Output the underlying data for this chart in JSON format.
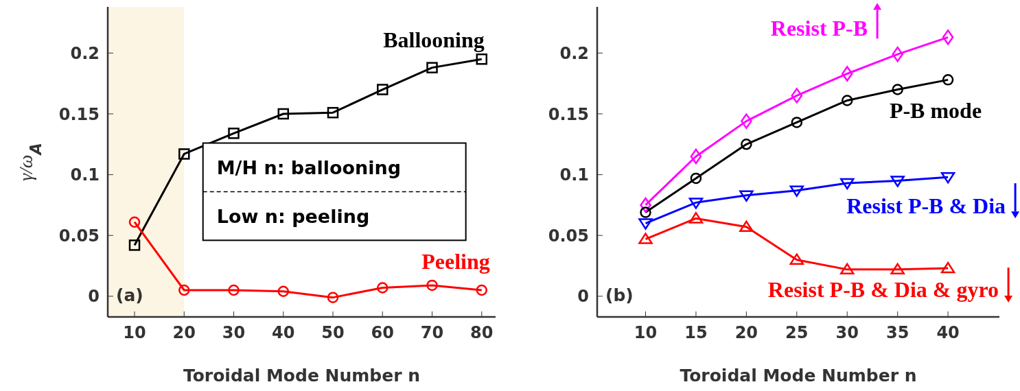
{
  "chart_data": [
    {
      "type": "line",
      "xlabel": "Toroidal Mode Number n",
      "ylabel": "γ/ω$_{A}$",
      "x": [
        10,
        20,
        30,
        40,
        50,
        60,
        70,
        80
      ],
      "xlim": [
        4.6,
        82.8
      ],
      "xticks": [
        10,
        20,
        30,
        40,
        50,
        60,
        70,
        80
      ],
      "ylim": [
        -0.017,
        0.238
      ],
      "yticks": [
        0,
        0.05,
        0.1,
        0.15,
        0.2
      ],
      "grid": false,
      "legend": false,
      "bands": [
        {
          "axis": "x",
          "from": 4.6,
          "to": 20,
          "color": "#fdf5e3"
        }
      ],
      "annotations": [
        "(a)",
        "M/H n: ballooning",
        "Low n: peeling"
      ],
      "series": [
        {
          "name": "Ballooning",
          "color": "#000000",
          "marker": "square",
          "values": [
            0.042,
            0.117,
            0.134,
            0.15,
            0.151,
            0.17,
            0.188,
            0.195
          ]
        },
        {
          "name": "Peeling",
          "color": "#ff0000",
          "marker": "circle",
          "values": [
            0.061,
            0.005,
            0.005,
            0.004,
            -0.001,
            0.007,
            0.009,
            0.005
          ]
        }
      ]
    },
    {
      "type": "line",
      "xlabel": "Toroidal Mode Number n",
      "x": [
        10,
        15,
        20,
        25,
        30,
        35,
        40
      ],
      "xlim": [
        5.2,
        45.1
      ],
      "xticks": [
        10,
        15,
        20,
        25,
        30,
        35,
        40
      ],
      "ylim": [
        -0.017,
        0.238
      ],
      "yticks": [
        0,
        0.05,
        0.1,
        0.15,
        0.2
      ],
      "grid": false,
      "legend": "right",
      "annotations": [
        "(b)"
      ],
      "series": [
        {
          "name": "Resist P-B",
          "color": "#ff00ff",
          "marker": "diamond",
          "values": [
            0.075,
            0.115,
            0.144,
            0.165,
            0.183,
            0.199,
            0.213
          ]
        },
        {
          "name": "P-B mode",
          "color": "#000000",
          "marker": "circle",
          "values": [
            0.069,
            0.097,
            0.125,
            0.143,
            0.161,
            0.17,
            0.178
          ]
        },
        {
          "name": "Resist P-B & Dia",
          "color": "#0000ff",
          "marker": "triangle-down",
          "values": [
            0.06,
            0.077,
            0.083,
            0.087,
            0.093,
            0.095,
            0.098
          ]
        },
        {
          "name": "Resist P-B & Dia & gyro",
          "color": "#ff0000",
          "marker": "triangle",
          "values": [
            0.047,
            0.064,
            0.057,
            0.03,
            0.022,
            0.022,
            0.023
          ]
        }
      ]
    }
  ]
}
